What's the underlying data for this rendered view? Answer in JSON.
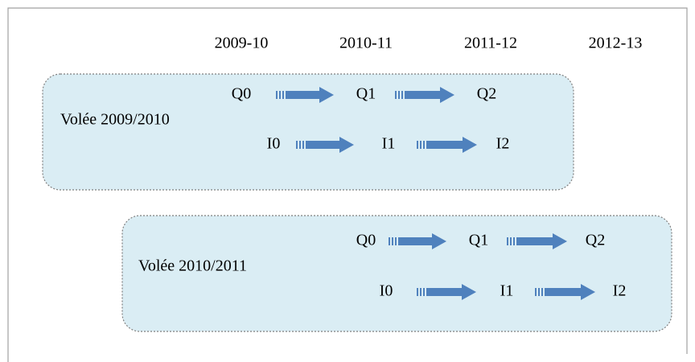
{
  "years": [
    "2009-10",
    "2010-11",
    "2011-12",
    "2012-13"
  ],
  "cohorts": [
    {
      "label": "Volée 2009/2010",
      "q_row": [
        "Q0",
        "Q1",
        "Q2"
      ],
      "i_row": [
        "I0",
        "I1",
        "I2"
      ]
    },
    {
      "label": "Volée 2010/2011",
      "q_row": [
        "Q0",
        "Q1",
        "Q2"
      ],
      "i_row": [
        "I0",
        "I1",
        "I2"
      ]
    }
  ]
}
